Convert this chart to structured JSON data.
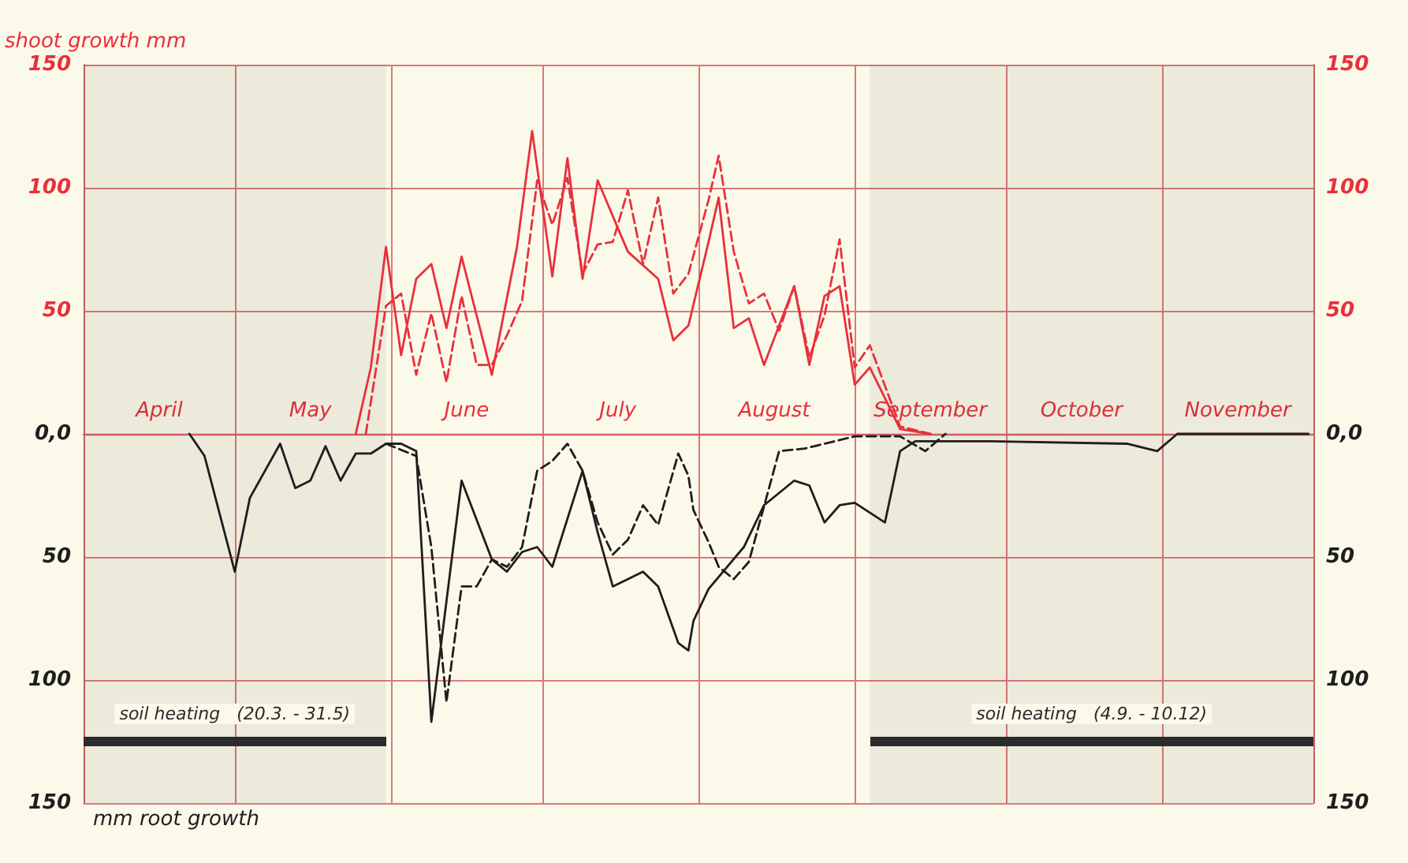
{
  "chart_data": {
    "type": "line",
    "ylabel": "shoot growth mm",
    "annotations": [
      "mm root growth"
    ],
    "xlim": [
      "--04-01",
      "--12-01"
    ],
    "xticks": [
      {
        "value": "--04-01",
        "label": null
      },
      {
        "value": "--04-16",
        "label": "April"
      },
      {
        "value": "--05-01",
        "label": null
      },
      {
        "value": "--05-16",
        "label": "May"
      },
      {
        "value": "--06-01",
        "label": null
      },
      {
        "value": "--06-16",
        "label": "June"
      },
      {
        "value": "--07-01",
        "label": null
      },
      {
        "value": "--07-16",
        "label": "July"
      },
      {
        "value": "--08-01",
        "label": null
      },
      {
        "value": "--08-16",
        "label": "August"
      },
      {
        "value": "--09-01",
        "label": null
      },
      {
        "value": "--09-16",
        "label": "September"
      },
      {
        "value": "--10-01",
        "label": null
      },
      {
        "value": "--10-16",
        "label": "October"
      },
      {
        "value": "--11-01",
        "label": null
      },
      {
        "value": "--11-16",
        "label": "November"
      },
      {
        "value": "--12-01",
        "label": null
      }
    ],
    "ylim": [
      -150,
      150
    ],
    "yticks": [
      {
        "value": -150,
        "label": "150"
      },
      {
        "value": -100,
        "label": "100"
      },
      {
        "value": -50,
        "label": "50"
      },
      {
        "value": 0,
        "label": "0,0"
      },
      50,
      100,
      150
    ],
    "y2lim": [
      -150,
      150
    ],
    "y2ticks": [
      {
        "value": -150,
        "label": "150"
      },
      {
        "value": -100,
        "label": "100"
      },
      {
        "value": -50,
        "label": "50"
      },
      {
        "value": 0,
        "label": "0,0"
      },
      50,
      100,
      150
    ],
    "grid": true,
    "marker": "none",
    "bands": [
      {
        "axis": "x",
        "from": "--04-01",
        "to": "--05-31",
        "label": "soil heating   (20.3. - 31.5)",
        "color": "#2b2b2b"
      },
      {
        "axis": "x",
        "from": "--09-04",
        "to": "--12-01",
        "label": "soil heating   (4.9. - 10.12)",
        "color": "#2b2b2b"
      }
    ],
    "series": [
      {
        "color": "#e8303c",
        "line_style": "solid",
        "x": [
          "--05-25",
          "--05-28",
          "--05-31",
          "--06-03",
          "--06-06",
          "--06-09",
          "--06-12",
          "--06-15",
          "--06-21",
          "--06-26",
          "--06-29",
          "--07-03",
          "--07-06",
          "--07-09",
          "--07-12",
          "--07-18",
          "--07-24",
          "--07-27",
          "--07-30",
          "--08-03",
          "--08-05",
          "--08-08",
          "--08-11",
          "--08-14",
          "--08-20",
          "--08-23",
          "--08-26",
          "--08-29",
          "--09-01",
          "--09-04",
          "--09-10",
          "--09-16"
        ],
        "values": [
          0,
          27,
          76,
          32,
          63,
          69,
          43,
          72,
          24,
          76,
          123,
          64,
          112,
          63,
          103,
          74,
          63,
          38,
          44,
          78,
          96,
          43,
          47,
          28,
          60,
          28,
          56,
          60,
          20,
          27,
          2,
          0
        ]
      },
      {
        "color": "#e8303c",
        "line_style": "dashed",
        "x": [
          "--05-27",
          "--05-31",
          "--06-03",
          "--06-06",
          "--06-09",
          "--06-12",
          "--06-15",
          "--06-18",
          "--06-21",
          "--06-24",
          "--06-27",
          "--06-30",
          "--07-03",
          "--07-06",
          "--07-09",
          "--07-12",
          "--07-15",
          "--07-18",
          "--07-21",
          "--07-24",
          "--07-27",
          "--07-30",
          "--08-03",
          "--08-05",
          "--08-08",
          "--08-11",
          "--08-14",
          "--08-17",
          "--08-20",
          "--08-23",
          "--08-26",
          "--08-29",
          "--09-01",
          "--09-04",
          "--09-10",
          "--09-16"
        ],
        "values": [
          0,
          52,
          57,
          24,
          49,
          21,
          56,
          28,
          28,
          40,
          54,
          103,
          85,
          104,
          65,
          77,
          78,
          99,
          69,
          96,
          57,
          65,
          95,
          113,
          74,
          53,
          57,
          42,
          60,
          31,
          48,
          79,
          27,
          36,
          3,
          0
        ]
      },
      {
        "color": "#1e1e1e",
        "line_style": "solid",
        "x": [
          "--04-22",
          "--04-25",
          "--05-01",
          "--05-04",
          "--05-10",
          "--05-13",
          "--05-16",
          "--05-19",
          "--05-22",
          "--05-25",
          "--05-28",
          "--05-31",
          "--06-03",
          "--06-06",
          "--06-09",
          "--06-15",
          "--06-21",
          "--06-24",
          "--06-27",
          "--06-30",
          "--07-03",
          "--07-09",
          "--07-12",
          "--07-15",
          "--07-21",
          "--07-24",
          "--07-28",
          "--07-30",
          "--07-31",
          "--08-03",
          "--08-10",
          "--08-14",
          "--08-20",
          "--08-23",
          "--08-26",
          "--08-29",
          "--09-01",
          "--09-07",
          "--09-10",
          "--09-13",
          "--09-28",
          "--10-25",
          "--10-31",
          "--11-04",
          "--11-30"
        ],
        "values": [
          0,
          -9,
          -56,
          -26,
          -4,
          -22,
          -19,
          -5,
          -19,
          -8,
          -8,
          -4,
          -4,
          -7,
          -117,
          -19,
          -51,
          -56,
          -48,
          -46,
          -54,
          -15,
          -40,
          -62,
          -56,
          -62,
          -85,
          -88,
          -76,
          -63,
          -46,
          -29,
          -19,
          -21,
          -36,
          -29,
          -28,
          -36,
          -7,
          -3,
          -3,
          -4,
          -7,
          0,
          0
        ]
      },
      {
        "color": "#1e1e1e",
        "line_style": "dashed",
        "x": [
          "--05-31",
          "--06-06",
          "--06-09",
          "--06-12",
          "--06-15",
          "--06-18",
          "--06-21",
          "--06-24",
          "--06-27",
          "--06-30",
          "--07-03",
          "--07-06",
          "--07-09",
          "--07-12",
          "--07-15",
          "--07-18",
          "--07-21",
          "--07-24",
          "--07-28",
          "--07-30",
          "--07-31",
          "--08-03",
          "--08-05",
          "--08-08",
          "--08-11",
          "--08-17",
          "--08-22",
          "--09-01",
          "--09-10",
          "--09-15",
          "--09-19"
        ],
        "values": [
          -4,
          -9,
          -46,
          -109,
          -62,
          -62,
          -51,
          -54,
          -46,
          -15,
          -11,
          -4,
          -15,
          -36,
          -49,
          -43,
          -29,
          -37,
          -8,
          -17,
          -31,
          -44,
          -54,
          -59,
          -52,
          -7,
          -6,
          -1,
          -1,
          -7,
          0
        ]
      }
    ]
  }
}
